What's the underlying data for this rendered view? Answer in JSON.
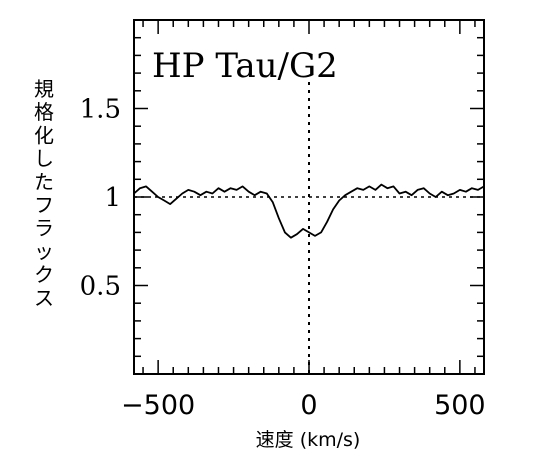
{
  "chart_data": {
    "type": "line",
    "title": "HP Tau/G2",
    "xlabel": "速度 (km/s)",
    "ylabel": "規格化したフラックス",
    "xlim": [
      -580,
      580
    ],
    "ylim": [
      0,
      2.0
    ],
    "xticks": [
      -500,
      0,
      500
    ],
    "xtick_labels": [
      "−500",
      "0",
      "500"
    ],
    "yticks": [
      0.5,
      1,
      1.5
    ],
    "ytick_labels": [
      "0.5",
      "1",
      "1.5"
    ],
    "reference_lines": {
      "horizontal_y": 1,
      "vertical_x": 0
    },
    "grid": false,
    "series": [
      {
        "x": [
          -580,
          -560,
          -540,
          -520,
          -500,
          -480,
          -460,
          -440,
          -420,
          -400,
          -380,
          -360,
          -340,
          -320,
          -300,
          -280,
          -260,
          -240,
          -220,
          -200,
          -180,
          -160,
          -140,
          -120,
          -100,
          -80,
          -60,
          -40,
          -20,
          0,
          20,
          40,
          60,
          80,
          100,
          120,
          140,
          160,
          180,
          200,
          220,
          240,
          260,
          280,
          300,
          320,
          340,
          360,
          380,
          400,
          420,
          440,
          460,
          480,
          500,
          520,
          540,
          560,
          580
        ],
        "values": [
          1.02,
          1.05,
          1.06,
          1.03,
          1.0,
          0.98,
          0.96,
          0.99,
          1.02,
          1.04,
          1.03,
          1.01,
          1.03,
          1.02,
          1.05,
          1.03,
          1.05,
          1.04,
          1.06,
          1.03,
          1.01,
          1.03,
          1.02,
          0.97,
          0.88,
          0.8,
          0.77,
          0.79,
          0.82,
          0.8,
          0.78,
          0.8,
          0.86,
          0.93,
          0.98,
          1.01,
          1.03,
          1.05,
          1.04,
          1.06,
          1.04,
          1.07,
          1.05,
          1.06,
          1.02,
          1.03,
          1.01,
          1.04,
          1.05,
          1.02,
          1.0,
          1.03,
          1.01,
          1.02,
          1.04,
          1.03,
          1.05,
          1.04,
          1.06
        ]
      }
    ]
  }
}
